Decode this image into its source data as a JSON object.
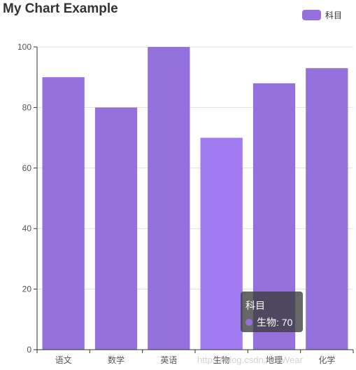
{
  "colors": {
    "bar": "#9370DB",
    "bar_emphasis": "#A07BF0",
    "axis": "#333333",
    "grid": "#E0E0E0"
  },
  "chart_data": {
    "type": "bar",
    "title": "My Chart Example",
    "categories": [
      "语文",
      "数学",
      "英语",
      "生物",
      "地理",
      "化学"
    ],
    "series": [
      {
        "name": "科目",
        "values": [
          90,
          80,
          100,
          70,
          88,
          93
        ]
      }
    ],
    "ylim": [
      0,
      100
    ],
    "yticks": [
      0,
      20,
      40,
      60,
      80,
      100
    ],
    "grid": true,
    "legend": "top-right"
  },
  "tooltip": {
    "title": "科目",
    "text": "生物: 70"
  },
  "watermark": "https://blog.csdn.net/Wear"
}
